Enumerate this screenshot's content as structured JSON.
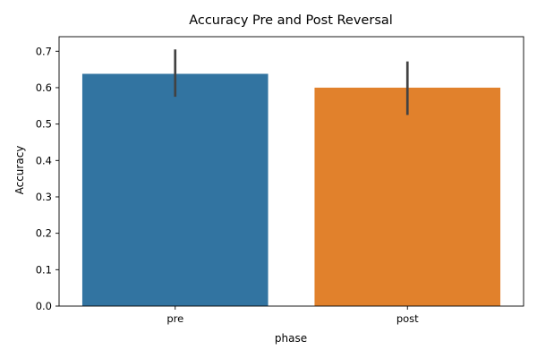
{
  "chart_data": {
    "type": "bar",
    "title": "Accuracy Pre and Post Reversal",
    "xlabel": "phase",
    "ylabel": "Accuracy",
    "categories": [
      "pre",
      "post"
    ],
    "values": [
      0.638,
      0.6
    ],
    "error_bars": [
      {
        "low": 0.575,
        "high": 0.705
      },
      {
        "low": 0.525,
        "high": 0.672
      }
    ],
    "colors": [
      "#3274a1",
      "#e1812c"
    ],
    "error_bar_color": "#424242",
    "ylim": [
      0,
      0.74
    ],
    "yticks": [
      "0.0",
      "0.1",
      "0.2",
      "0.3",
      "0.4",
      "0.5",
      "0.6",
      "0.7"
    ],
    "grid": false,
    "legend": "none"
  }
}
